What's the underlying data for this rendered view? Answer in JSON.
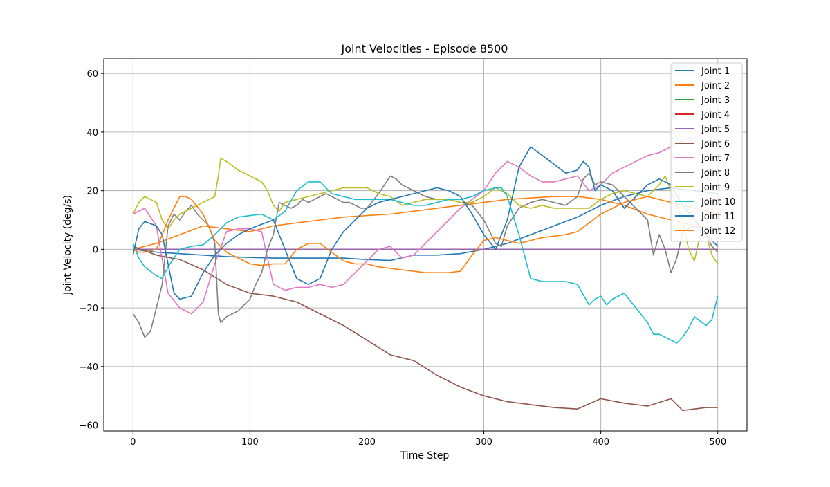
{
  "chart_data": {
    "type": "line",
    "title": "Joint Velocities - Episode 8500",
    "xlabel": "Time Step",
    "ylabel": "Joint Velocity (deg/s)",
    "xlim": [
      -25,
      525
    ],
    "ylim": [
      -62,
      65
    ],
    "xticks": [
      0,
      100,
      200,
      300,
      400,
      500
    ],
    "yticks": [
      -60,
      -40,
      -20,
      0,
      20,
      40,
      60
    ],
    "grid": true,
    "legend_position": "top-right",
    "series": [
      {
        "name": "Joint 1",
        "color": "#1f77b4",
        "x": [
          0,
          20,
          40,
          60,
          80,
          100,
          120,
          140,
          160,
          180,
          200,
          220,
          240,
          260,
          280,
          300,
          320,
          340,
          360,
          380,
          400,
          420,
          440,
          460,
          480,
          500
        ],
        "y": [
          0,
          -1,
          -1.5,
          -2,
          -2.5,
          -2.8,
          -3,
          -3,
          -3,
          -3,
          -3.5,
          -3.8,
          -2,
          -2,
          -1.5,
          0,
          2,
          5,
          8,
          11,
          15,
          18,
          20,
          21,
          20,
          19
        ]
      },
      {
        "name": "Joint 2",
        "color": "#ff7f0e",
        "x": [
          0,
          20,
          40,
          60,
          80,
          100,
          120,
          140,
          160,
          180,
          200,
          220,
          240,
          260,
          280,
          300,
          320,
          340,
          360,
          380,
          400,
          420,
          440,
          460,
          480,
          500
        ],
        "y": [
          0,
          2,
          5,
          8,
          7,
          6,
          8,
          9,
          10,
          11,
          11.5,
          12,
          13,
          14,
          15,
          16,
          17,
          17.5,
          18,
          18,
          17,
          15,
          12,
          10,
          8,
          6
        ]
      },
      {
        "name": "Joint 3",
        "color": "#2ca02c",
        "x": [
          0,
          100,
          200,
          300,
          400,
          500
        ],
        "y": [
          0,
          0,
          0,
          0,
          0,
          0
        ]
      },
      {
        "name": "Joint 4",
        "color": "#d62728",
        "x": [
          0,
          100,
          200,
          300,
          400,
          500
        ],
        "y": [
          0,
          0,
          0,
          0,
          0,
          0
        ]
      },
      {
        "name": "Joint 5",
        "color": "#9467bd",
        "x": [
          0,
          100,
          200,
          300,
          400,
          500
        ],
        "y": [
          0,
          0,
          0,
          0,
          0,
          0
        ]
      },
      {
        "name": "Joint 6",
        "color": "#8c564b",
        "x": [
          0,
          20,
          40,
          60,
          80,
          100,
          120,
          140,
          160,
          180,
          200,
          220,
          240,
          260,
          280,
          300,
          320,
          340,
          360,
          380,
          400,
          420,
          440,
          460,
          470,
          480,
          490,
          500
        ],
        "y": [
          1,
          -2,
          -3.5,
          -7,
          -12,
          -15,
          -16,
          -18,
          -22,
          -26,
          -31,
          -36,
          -38,
          -43,
          -47,
          -50,
          -52,
          -53,
          -54,
          -54.5,
          -51,
          -52.5,
          -53.5,
          -51,
          -55,
          -54.5,
          -54,
          -54
        ]
      },
      {
        "name": "Joint 7",
        "color": "#e377c2",
        "x": [
          0,
          10,
          20,
          30,
          40,
          50,
          60,
          70,
          80,
          90,
          100,
          110,
          120,
          130,
          140,
          150,
          160,
          170,
          180,
          190,
          200,
          210,
          220,
          230,
          240,
          250,
          260,
          270,
          280,
          290,
          300,
          310,
          320,
          330,
          340,
          350,
          360,
          370,
          380,
          390,
          400,
          410,
          420,
          430,
          440,
          450,
          460,
          470,
          480,
          490,
          500
        ],
        "y": [
          12,
          14,
          8,
          -15,
          -20,
          -22,
          -18,
          -5,
          6,
          7,
          7,
          6,
          -12,
          -14,
          -13,
          -13,
          -12,
          -13,
          -12,
          -8,
          -4,
          0,
          1,
          -3,
          -2,
          2,
          6,
          10,
          14,
          17,
          20,
          26,
          30,
          28,
          25,
          23,
          23,
          24,
          25,
          20,
          22,
          26,
          28,
          30,
          32,
          33,
          35,
          37,
          38,
          40,
          42
        ]
      },
      {
        "name": "Joint 8",
        "color": "#7f7f7f",
        "x": [
          0,
          5,
          10,
          15,
          20,
          25,
          30,
          35,
          40,
          45,
          50,
          55,
          60,
          65,
          70,
          73,
          75,
          80,
          85,
          90,
          95,
          100,
          105,
          110,
          115,
          120,
          125,
          130,
          135,
          140,
          145,
          150,
          155,
          160,
          165,
          170,
          175,
          180,
          185,
          190,
          195,
          200,
          210,
          220,
          225,
          230,
          240,
          250,
          260,
          270,
          280,
          290,
          300,
          310,
          315,
          320,
          330,
          340,
          350,
          360,
          370,
          380,
          385,
          390,
          395,
          400,
          410,
          420,
          430,
          440,
          445,
          450,
          455,
          460,
          465,
          470,
          480,
          490,
          495,
          500
        ],
        "y": [
          -22,
          -25,
          -30,
          -28,
          -20,
          -12,
          8,
          12,
          10,
          13,
          15,
          12,
          10,
          8,
          2,
          -22,
          -25,
          -23,
          -22,
          -21,
          -19,
          -17,
          -12,
          -8,
          0,
          5,
          16,
          15,
          14,
          15,
          17,
          16,
          17,
          18,
          19,
          18,
          17,
          16,
          16,
          15,
          14,
          14,
          19,
          25,
          24,
          22,
          20,
          18,
          17,
          17,
          16,
          15,
          10,
          2,
          1,
          8,
          14,
          16,
          17,
          16,
          15,
          18,
          24,
          26,
          22,
          23,
          22,
          18,
          14,
          10,
          -2,
          5,
          0,
          -8,
          -3,
          6,
          8,
          5,
          1,
          -1
        ]
      },
      {
        "name": "Joint 9",
        "color": "#bcbd22",
        "x": [
          0,
          5,
          10,
          15,
          20,
          25,
          30,
          35,
          40,
          50,
          60,
          65,
          70,
          73,
          75,
          80,
          90,
          100,
          110,
          115,
          120,
          125,
          130,
          140,
          150,
          160,
          170,
          180,
          190,
          200,
          210,
          220,
          230,
          240,
          250,
          260,
          270,
          280,
          290,
          300,
          310,
          320,
          330,
          340,
          350,
          360,
          370,
          380,
          390,
          400,
          410,
          420,
          430,
          440,
          445,
          450,
          455,
          460,
          465,
          470,
          475,
          480,
          485,
          490,
          495,
          500
        ],
        "y": [
          12,
          16,
          18,
          17,
          16,
          10,
          7,
          10,
          12,
          14,
          16,
          17,
          18,
          25,
          31,
          30,
          27,
          25,
          23,
          20,
          15,
          13,
          16,
          17,
          18,
          19,
          20,
          21,
          21,
          21,
          19,
          18,
          15,
          16,
          17,
          17,
          17,
          16,
          16,
          18,
          21,
          19,
          15,
          14,
          15,
          14,
          14,
          14,
          14,
          17,
          19,
          20,
          19,
          18,
          20,
          22,
          25,
          20,
          15,
          10,
          0,
          -4,
          5,
          5,
          -2,
          -5
        ]
      },
      {
        "name": "Joint 10",
        "color": "#17becf",
        "x": [
          0,
          5,
          10,
          20,
          25,
          30,
          40,
          50,
          60,
          70,
          80,
          90,
          100,
          110,
          120,
          130,
          140,
          150,
          160,
          170,
          180,
          190,
          200,
          210,
          220,
          230,
          240,
          250,
          260,
          270,
          280,
          290,
          300,
          310,
          315,
          320,
          330,
          340,
          350,
          360,
          370,
          380,
          390,
          395,
          400,
          405,
          410,
          420,
          430,
          440,
          445,
          450,
          460,
          465,
          470,
          475,
          480,
          490,
          495,
          500
        ],
        "y": [
          2,
          -3,
          -6,
          -9,
          -10,
          -6,
          0,
          1,
          1.5,
          5,
          9,
          11,
          11.5,
          12,
          10,
          13,
          20,
          23,
          23,
          19,
          18,
          17,
          17,
          17,
          17,
          16,
          15,
          15,
          16,
          17,
          17,
          18,
          20,
          21,
          21,
          18,
          5,
          -10,
          -11,
          -11,
          -11,
          -12,
          -19,
          -17,
          -16,
          -19,
          -17,
          -15,
          -20,
          -25,
          -29,
          -29,
          -31,
          -32,
          -30,
          -27,
          -23,
          -26,
          -24,
          -16
        ]
      },
      {
        "name": "Joint 11",
        "color": "#1f77b4",
        "x": [
          0,
          5,
          10,
          20,
          25,
          30,
          35,
          40,
          50,
          60,
          70,
          80,
          90,
          100,
          110,
          120,
          130,
          140,
          150,
          160,
          170,
          180,
          190,
          200,
          210,
          220,
          230,
          240,
          250,
          260,
          270,
          280,
          290,
          300,
          310,
          320,
          330,
          340,
          350,
          360,
          370,
          380,
          385,
          390,
          395,
          400,
          410,
          420,
          430,
          440,
          450,
          460,
          470,
          480,
          490,
          495,
          500
        ],
        "y": [
          -2,
          7,
          9.5,
          8,
          5,
          -5,
          -15,
          -17,
          -16,
          -8,
          -2,
          2,
          5,
          7,
          8.5,
          10,
          0,
          -10,
          -12,
          -10,
          0,
          6,
          10,
          14,
          16,
          17,
          18,
          19,
          20,
          21,
          20,
          18,
          12,
          5,
          0,
          10,
          28,
          35,
          32,
          29,
          26,
          27,
          30,
          28,
          20,
          22,
          20,
          14,
          18,
          22,
          24,
          22,
          15,
          10,
          5,
          3,
          1
        ]
      },
      {
        "name": "Joint 12",
        "color": "#ff7f0e",
        "x": [
          0,
          5,
          10,
          20,
          30,
          40,
          45,
          50,
          60,
          70,
          80,
          90,
          100,
          110,
          120,
          130,
          140,
          150,
          160,
          170,
          180,
          190,
          200,
          210,
          220,
          230,
          240,
          250,
          260,
          270,
          280,
          290,
          300,
          310,
          320,
          330,
          340,
          350,
          360,
          370,
          380,
          390,
          400,
          410,
          420,
          430,
          440,
          450,
          460,
          470,
          480,
          490,
          500
        ],
        "y": [
          0,
          -1,
          -1,
          0,
          10,
          18,
          18,
          17,
          12,
          3,
          -1,
          -3,
          -5,
          -5.5,
          -5,
          -5,
          0,
          2,
          2,
          -1,
          -4,
          -5,
          -5,
          -6,
          -6.5,
          -7,
          -7.5,
          -8,
          -8,
          -8,
          -7.5,
          -2,
          3,
          4,
          3,
          2,
          3,
          4,
          4.5,
          5,
          6,
          9,
          12,
          14,
          16,
          17,
          18,
          17,
          16,
          15,
          14,
          13,
          12
        ]
      }
    ]
  }
}
